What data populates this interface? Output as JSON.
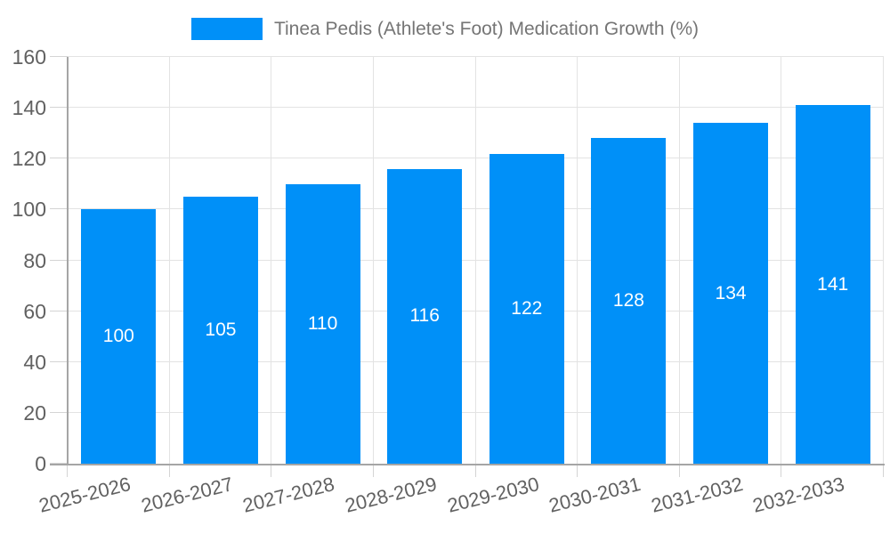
{
  "legend": {
    "label": "Tinea Pedis (Athlete's Foot) Medication Growth (%)"
  },
  "chart_data": {
    "type": "bar",
    "title": "Tinea Pedis (Athlete's Foot) Medication Growth (%)",
    "categories": [
      "2025-2026",
      "2026-2027",
      "2027-2028",
      "2028-2029",
      "2029-2030",
      "2030-2031",
      "2031-2032",
      "2032-2033"
    ],
    "values": [
      100,
      105,
      110,
      116,
      122,
      128,
      134,
      141
    ],
    "xlabel": "",
    "ylabel": "",
    "ylim": [
      0,
      160
    ],
    "yticks": [
      0,
      20,
      40,
      60,
      80,
      100,
      120,
      140,
      160
    ],
    "grid": true,
    "legend_position": "top",
    "bar_value_labels_shown": true
  },
  "colors": {
    "bar": "#0090F8",
    "value_label": "#FFFFFF",
    "legend_text": "#757575",
    "axis_text": "#616161",
    "gridline": "#E3E3E3",
    "tick": "#D4D4D4",
    "axis_line": "#A5A5A5",
    "background": "#FFFFFF"
  }
}
